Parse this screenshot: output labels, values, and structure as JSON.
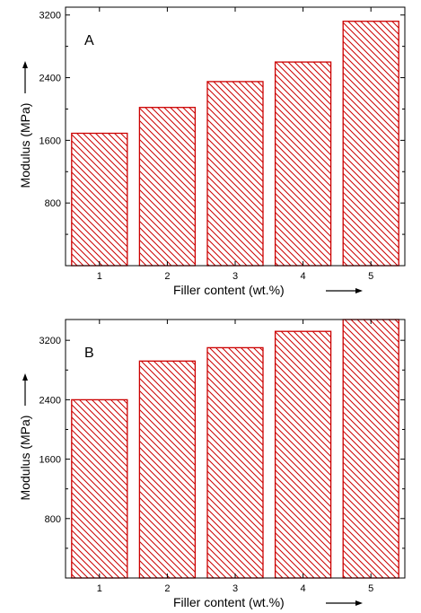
{
  "chart_data": [
    {
      "type": "bar",
      "panel_label": "A",
      "categories": [
        "1",
        "2",
        "3",
        "4",
        "5"
      ],
      "values": [
        1690,
        2020,
        2350,
        2600,
        3120
      ],
      "xlabel": "Filler content (wt.%)",
      "ylabel": "Modulus (MPa)",
      "ylim": [
        0,
        3300
      ],
      "yticks": [
        800,
        1600,
        2400,
        3200
      ],
      "yticks_labels": [
        "800",
        "1600",
        "2400",
        "3200"
      ],
      "bar_color": "#cc0000",
      "hatch": "diagonal",
      "grid": false
    },
    {
      "type": "bar",
      "panel_label": "B",
      "categories": [
        "1",
        "2",
        "3",
        "4",
        "5"
      ],
      "values": [
        2400,
        2920,
        3100,
        3320,
        3480
      ],
      "xlabel": "Filler content (wt.%)",
      "ylabel": "Modulus (MPa)",
      "ylim": [
        0,
        3480
      ],
      "yticks": [
        800,
        1600,
        2400,
        3200
      ],
      "yticks_labels": [
        "800",
        "1600",
        "2400",
        "3200"
      ],
      "bar_color": "#cc0000",
      "hatch": "diagonal",
      "grid": false
    }
  ]
}
